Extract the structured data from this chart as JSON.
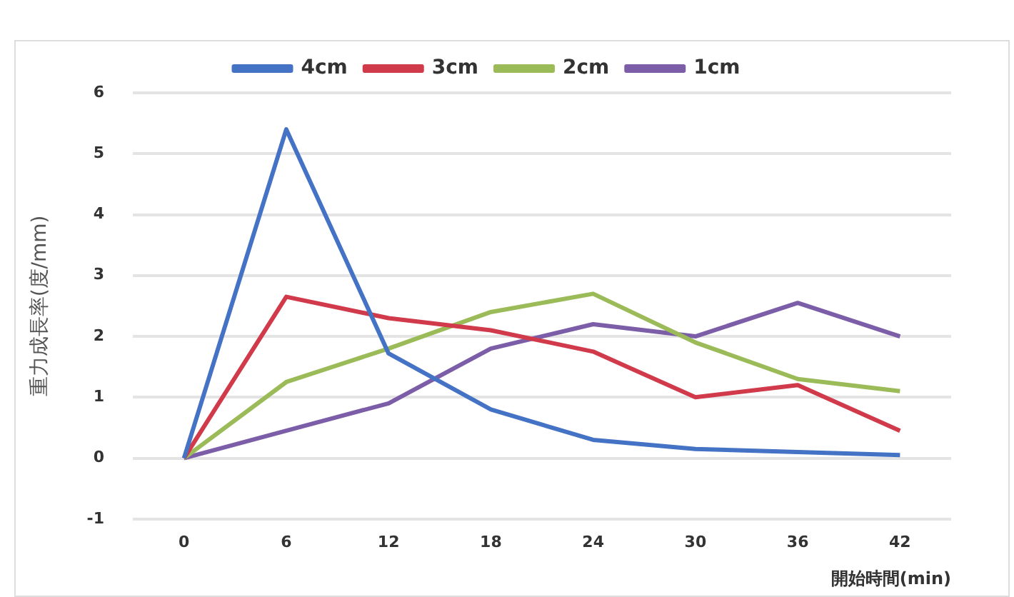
{
  "chart_data": {
    "type": "line",
    "xlabel": "開始時間(min)",
    "ylabel": "重力成長率(度/mm)",
    "categories": [
      "0",
      "6",
      "12",
      "18",
      "24",
      "30",
      "36",
      "42"
    ],
    "series": [
      {
        "name": "4cm",
        "color": "#4472c4",
        "values": [
          0,
          5.4,
          1.72,
          0.8,
          0.3,
          0.15,
          0.1,
          0.05
        ]
      },
      {
        "name": "3cm",
        "color": "#d03a4a",
        "values": [
          0,
          2.65,
          2.3,
          2.1,
          1.75,
          1.0,
          1.2,
          0.45
        ]
      },
      {
        "name": "2cm",
        "color": "#9bbb59",
        "values": [
          0,
          1.25,
          1.8,
          2.4,
          2.7,
          1.9,
          1.3,
          1.1
        ]
      },
      {
        "name": "1cm",
        "color": "#7b5ea7",
        "values": [
          0,
          0.45,
          0.9,
          1.8,
          2.2,
          2.0,
          2.55,
          2.0
        ]
      }
    ],
    "ylim": [
      -1,
      6
    ],
    "yticks": [
      -1,
      0,
      1,
      2,
      3,
      4,
      5,
      6
    ],
    "grid": "y",
    "legend": "top",
    "marker": "none",
    "line_style": "solid"
  }
}
